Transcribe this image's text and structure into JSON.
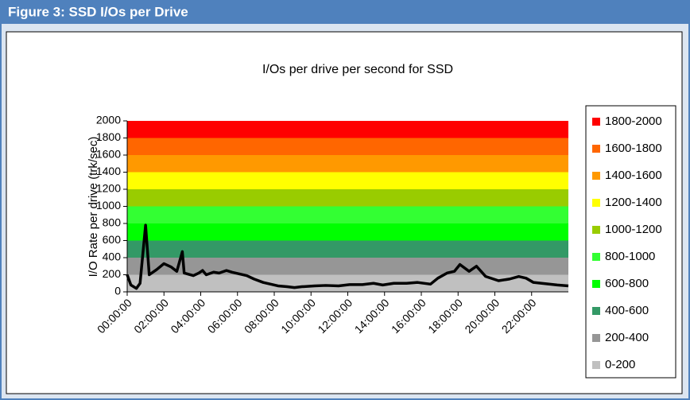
{
  "header": {
    "title": "Figure 3:  SSD I/Os per Drive"
  },
  "chart_data": {
    "type": "line",
    "title": "I/Os per drive per second for SSD",
    "y_label": "I/O Rate per drive (trk/sec)",
    "bands": [
      {
        "name": "0-200",
        "color": "#c0c0c0",
        "value": 200
      },
      {
        "name": "200-400",
        "color": "#969696",
        "value": 200
      },
      {
        "name": "400-600",
        "color": "#339966",
        "value": 200
      },
      {
        "name": "600-800",
        "color": "#00ff00",
        "value": 200
      },
      {
        "name": "800-1000",
        "color": "#33ff33",
        "value": 200
      },
      {
        "name": "1000-1200",
        "color": "#99cc00",
        "value": 200
      },
      {
        "name": "1200-1400",
        "color": "#ffff00",
        "value": 200
      },
      {
        "name": "1400-1600",
        "color": "#ff9900",
        "value": 200
      },
      {
        "name": "1600-1800",
        "color": "#ff6600",
        "value": 200
      },
      {
        "name": "1800-2000",
        "color": "#ff0000",
        "value": 200
      }
    ],
    "x": [
      0,
      0.2,
      0.5,
      0.7,
      1.0,
      1.2,
      1.6,
      2.0,
      2.4,
      2.7,
      3.0,
      3.1,
      3.6,
      3.9,
      4.1,
      4.3,
      4.7,
      5.0,
      5.4,
      5.7,
      6.1,
      6.5,
      6.9,
      7.4,
      7.8,
      8.2,
      8.7,
      9.1,
      9.5,
      10.2,
      10.8,
      11.5,
      12.1,
      12.8,
      13.4,
      13.9,
      14.5,
      15.2,
      15.8,
      16.5,
      16.9,
      17.4,
      17.8,
      18.1,
      18.6,
      19.0,
      19.5,
      20.2,
      20.8,
      21.3,
      21.7,
      22.1,
      23.0,
      23.4,
      24.0
    ],
    "series": [
      {
        "color": "#000000",
        "values": [
          200,
          80,
          40,
          100,
          780,
          200,
          260,
          330,
          290,
          240,
          470,
          220,
          190,
          220,
          250,
          200,
          230,
          220,
          250,
          230,
          210,
          190,
          150,
          110,
          90,
          70,
          60,
          50,
          60,
          70,
          75,
          70,
          85,
          85,
          100,
          80,
          100,
          100,
          110,
          90,
          160,
          220,
          240,
          320,
          240,
          300,
          180,
          130,
          150,
          180,
          160,
          110,
          90,
          80,
          70
        ]
      }
    ],
    "xlim": [
      0,
      24
    ],
    "xticks": [
      {
        "value": 0,
        "label": "00:00:00"
      },
      {
        "value": 2,
        "label": "02:00:00"
      },
      {
        "value": 4,
        "label": "04:00:00"
      },
      {
        "value": 6,
        "label": "06:00:00"
      },
      {
        "value": 8,
        "label": "08:00:00"
      },
      {
        "value": 10,
        "label": "10:00:00"
      },
      {
        "value": 12,
        "label": "12:00:00"
      },
      {
        "value": 14,
        "label": "14:00:00"
      },
      {
        "value": 16,
        "label": "16:00:00"
      },
      {
        "value": 18,
        "label": "18:00:00"
      },
      {
        "value": 20,
        "label": "20:00:00"
      },
      {
        "value": 22,
        "label": "22:00:00"
      }
    ],
    "ylim": [
      0,
      2000
    ],
    "yticks": [
      0,
      200,
      400,
      600,
      800,
      1000,
      1200,
      1400,
      1600,
      1800,
      2000
    ],
    "legend": "right"
  }
}
